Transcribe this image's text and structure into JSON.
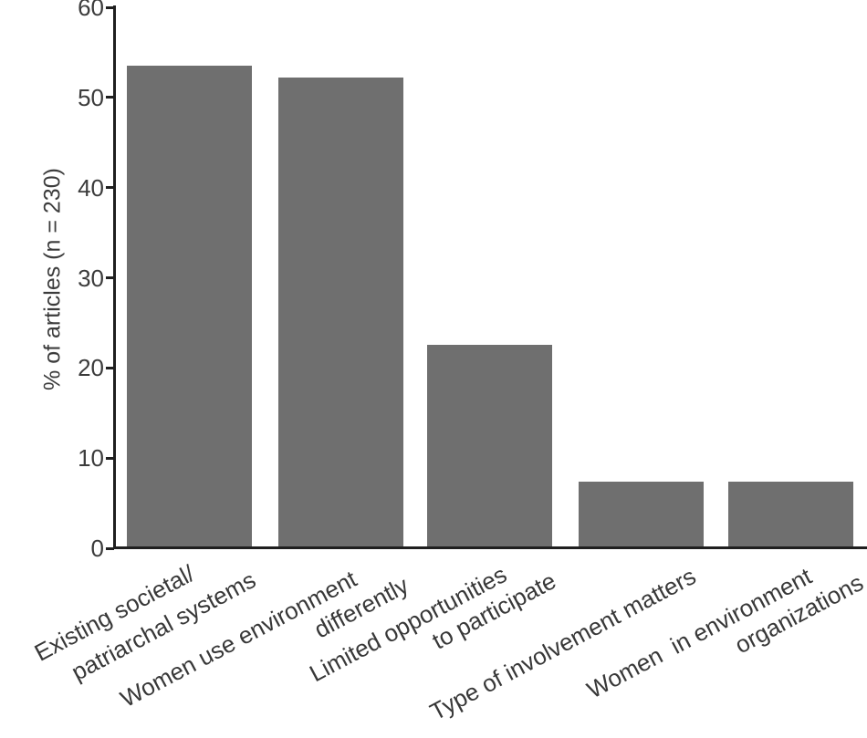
{
  "chart_data": {
    "type": "bar",
    "title": "",
    "ylabel": "% of articles (n = 230)",
    "xlabel": "",
    "ylim": [
      0,
      60
    ],
    "yticks": [
      0,
      10,
      20,
      30,
      40,
      50,
      60
    ],
    "categories": [
      "Existing societal/ patriarchal systems",
      "Women use environment differently",
      "Limited opportunities to participate",
      "Type of involvement matters",
      "Women  in environment organizations"
    ],
    "category_label_lines": [
      [
        "Existing societal/",
        "patriarchal systems"
      ],
      [
        "Women use environment",
        "differently"
      ],
      [
        "Limited opportunities",
        "to participate"
      ],
      [
        "Type of involvement matters"
      ],
      [
        "Women  in environment",
        "organizations"
      ]
    ],
    "values": [
      53.5,
      52.2,
      22.6,
      7.4,
      7.4
    ],
    "grid": "off",
    "legend": "none",
    "background_color": "#ffffff",
    "bar_color": "#6f6f6f",
    "axis_color": "#1f1f1f",
    "tick_text_color": "#3c3c3c",
    "label_text_color": "#383838"
  }
}
